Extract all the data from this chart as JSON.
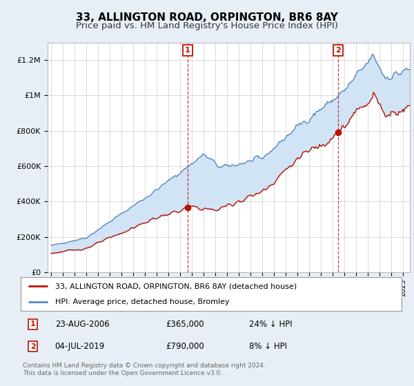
{
  "title": "33, ALLINGTON ROAD, ORPINGTON, BR6 8AY",
  "subtitle": "Price paid vs. HM Land Registry's House Price Index (HPI)",
  "ylim": [
    0,
    1300000
  ],
  "yticks": [
    0,
    200000,
    400000,
    600000,
    800000,
    1000000,
    1200000
  ],
  "ytick_labels": [
    "£0",
    "£200K",
    "£400K",
    "£600K",
    "£800K",
    "£1M",
    "£1.2M"
  ],
  "background_color": "#e8eef5",
  "plot_bg_color": "#ffffff",
  "hpi_color": "#5588bb",
  "price_color": "#bb1100",
  "fill_color": "#d0e4f5",
  "sale1_date": "23-AUG-2006",
  "sale1_price": 365000,
  "sale1_label": "24% ↓ HPI",
  "sale1_x": 2006.65,
  "sale2_date": "04-JUL-2019",
  "sale2_price": 790000,
  "sale2_label": "8% ↓ HPI",
  "sale2_x": 2019.5,
  "legend_line1": "33, ALLINGTON ROAD, ORPINGTON, BR6 8AY (detached house)",
  "legend_line2": "HPI: Average price, detached house, Bromley",
  "footer": "Contains HM Land Registry data © Crown copyright and database right 2024.\nThis data is licensed under the Open Government Licence v3.0.",
  "title_fontsize": 11,
  "subtitle_fontsize": 9.5
}
